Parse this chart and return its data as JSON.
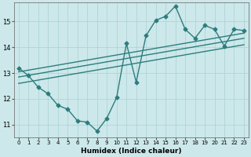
{
  "title": "",
  "xlabel": "Humidex (Indice chaleur)",
  "bg_color": "#cce8ea",
  "line_color": "#2d7d7d",
  "grid_color": "#b0d4d8",
  "xlim": [
    -0.5,
    23.5
  ],
  "ylim": [
    10.5,
    15.75
  ],
  "xticks": [
    0,
    1,
    2,
    3,
    4,
    5,
    6,
    7,
    8,
    9,
    10,
    11,
    12,
    13,
    14,
    15,
    16,
    17,
    18,
    19,
    20,
    21,
    22,
    23
  ],
  "yticks": [
    11,
    12,
    13,
    14,
    15
  ],
  "series1_x": [
    0,
    1,
    2,
    3,
    4,
    5,
    6,
    7,
    8,
    9,
    10,
    11,
    12,
    13,
    14,
    15,
    16,
    17,
    18,
    19,
    20,
    21,
    22,
    23
  ],
  "series1_y": [
    13.2,
    12.9,
    12.45,
    12.2,
    11.75,
    11.6,
    11.15,
    11.1,
    10.75,
    11.25,
    12.05,
    14.15,
    12.65,
    14.45,
    15.05,
    15.2,
    15.6,
    14.7,
    14.35,
    14.85,
    14.7,
    14.05,
    14.7,
    14.65
  ],
  "series2_x": [
    0,
    23
  ],
  "series2_y": [
    12.6,
    14.1
  ],
  "series3_x": [
    0,
    23
  ],
  "series3_y": [
    12.85,
    14.35
  ],
  "series4_x": [
    0,
    23
  ],
  "series4_y": [
    13.05,
    14.55
  ],
  "marker": "D",
  "markersize": 2.5,
  "linewidth": 1.0
}
